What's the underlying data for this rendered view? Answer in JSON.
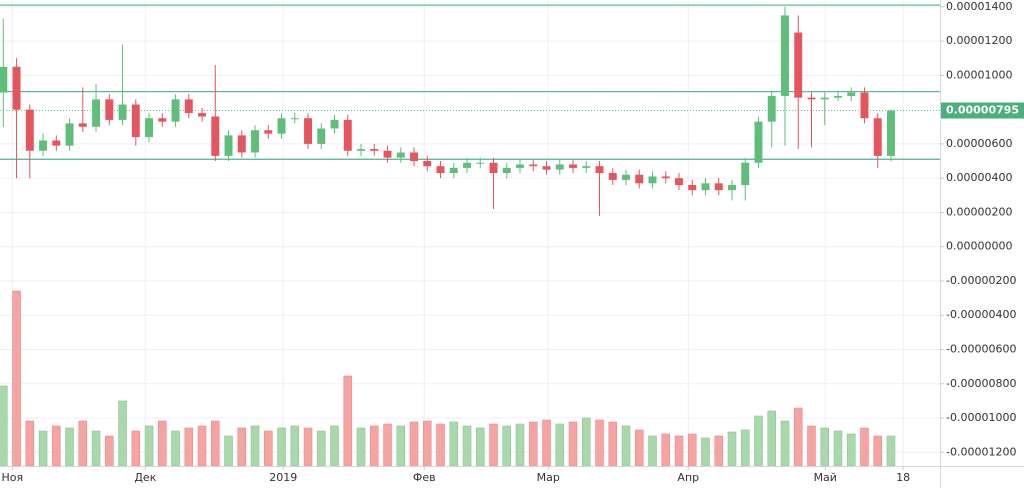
{
  "chart_data": {
    "type": "candlestick",
    "up_color": "#5fbf7a",
    "down_color": "#e4555f",
    "up_volume_color": "#a9d8ad",
    "down_volume_color": "#f5a3a3",
    "level_color": "#5cbd9b",
    "grid": true,
    "xlim": [
      -0.25,
      70.7
    ],
    "xticks": [
      {
        "value": 0.68,
        "label": "Ноя"
      },
      {
        "value": 10.72,
        "label": "Дек"
      },
      {
        "value": 21.13,
        "label": "2019"
      },
      {
        "value": 31.77,
        "label": "Фев"
      },
      {
        "value": 41.13,
        "label": "Мар"
      },
      {
        "value": 51.7,
        "label": "Апр"
      },
      {
        "value": 62.04,
        "label": "Май"
      },
      {
        "value": 67.92,
        "label": "18"
      }
    ],
    "ylim": [
      -1.28e-05,
      1.44e-05
    ],
    "yticks": [
      {
        "value": 1.4e-05,
        "label": "0.00001400"
      },
      {
        "value": 1.2e-05,
        "label": "0.00001200"
      },
      {
        "value": 1e-05,
        "label": "0.00001000"
      },
      {
        "value": 6e-06,
        "label": "0.00000600"
      },
      {
        "value": 4e-06,
        "label": "0.00000400"
      },
      {
        "value": 2e-06,
        "label": "0.00000200"
      },
      {
        "value": 0,
        "label": "0.00000000"
      },
      {
        "value": -2e-06,
        "label": "-0.00000200"
      },
      {
        "value": -4e-06,
        "label": "-0.00000400"
      },
      {
        "value": -6e-06,
        "label": "-0.00000600"
      },
      {
        "value": -8e-06,
        "label": "-0.00000800"
      },
      {
        "value": -1e-05,
        "label": "-0.00001000"
      },
      {
        "value": -1.2e-05,
        "label": "-0.00001200"
      }
    ],
    "last": {
      "value": 7.95e-06,
      "label": "0.00000795"
    },
    "levels": [
      1.41e-05,
      9.05e-06,
      5.1e-06
    ],
    "vlim": [
      0,
      200
    ],
    "open": [
      9e-06,
      1.05e-05,
      8e-06,
      5.6e-06,
      6.2e-06,
      5.9e-06,
      7.2e-06,
      7e-06,
      8.6e-06,
      7.4e-06,
      8.3e-06,
      6.4e-06,
      7.5e-06,
      7.3e-06,
      8.6e-06,
      7.8e-06,
      7.6e-06,
      5.3e-06,
      6.5e-06,
      5.5e-06,
      6.8e-06,
      6.6e-06,
      7.5e-06,
      7.5e-06,
      6e-06,
      6.9e-06,
      7.4e-06,
      5.6e-06,
      5.7e-06,
      5.6e-06,
      5.2e-06,
      5.5e-06,
      5e-06,
      4.7e-06,
      4.3e-06,
      4.6e-06,
      4.9e-06,
      4.9e-06,
      4.3e-06,
      4.6e-06,
      4.8e-06,
      4.7e-06,
      4.5e-06,
      4.8e-06,
      4.6e-06,
      4.7e-06,
      4.3e-06,
      3.9e-06,
      4.2e-06,
      3.7e-06,
      4.1e-06,
      4e-06,
      3.6e-06,
      3.3e-06,
      3.7e-06,
      3.3e-06,
      3.6e-06,
      4.9e-06,
      7.3e-06,
      8.8e-06,
      1.25e-05,
      8.7e-06,
      8.6e-06,
      8.7e-06,
      8.8e-06,
      9e-06,
      7.5e-06,
      5.3e-06
    ],
    "high": [
      1.33e-05,
      1.1e-05,
      8.3e-06,
      6.6e-06,
      6.5e-06,
      7.5e-06,
      9.3e-06,
      9.5e-06,
      8.9e-06,
      1.18e-05,
      8.6e-06,
      7.8e-06,
      7.8e-06,
      8.9e-06,
      8.9e-06,
      8.1e-06,
      1.06e-05,
      6.8e-06,
      6.8e-06,
      7.1e-06,
      7.1e-06,
      7.8e-06,
      7.8e-06,
      7.8e-06,
      7.2e-06,
      7.7e-06,
      7.7e-06,
      6e-06,
      6e-06,
      5.9e-06,
      5.8e-06,
      5.8e-06,
      5.3e-06,
      5e-06,
      4.9e-06,
      5.2e-06,
      5.2e-06,
      5.2e-06,
      4.9e-06,
      5.1e-06,
      5.1e-06,
      5e-06,
      5.1e-06,
      5.1e-06,
      5e-06,
      5e-06,
      4.6e-06,
      4.5e-06,
      4.5e-06,
      4.4e-06,
      4.4e-06,
      4.3e-06,
      3.9e-06,
      4e-06,
      4e-06,
      3.9e-06,
      5.2e-06,
      7.6e-06,
      9.1e-06,
      1.4e-05,
      1.35e-05,
      9e-06,
      9e-06,
      9.1e-06,
      9.3e-06,
      9.3e-06,
      7.8e-06,
      8e-06
    ],
    "low": [
      7e-06,
      4e-06,
      4e-06,
      5.3e-06,
      5.6e-06,
      5.6e-06,
      6.7e-06,
      6.7e-06,
      7.1e-06,
      7.1e-06,
      5.9e-06,
      6.1e-06,
      7e-06,
      7e-06,
      7.5e-06,
      7.3e-06,
      5e-06,
      5e-06,
      5.2e-06,
      5.2e-06,
      6.3e-06,
      6.3e-06,
      7.2e-06,
      5.7e-06,
      5.7e-06,
      6.6e-06,
      5.3e-06,
      5.3e-06,
      5.3e-06,
      4.9e-06,
      4.9e-06,
      4.7e-06,
      4.4e-06,
      4e-06,
      4e-06,
      4.3e-06,
      4.6e-06,
      2.2e-06,
      4e-06,
      4.3e-06,
      4.4e-06,
      4.2e-06,
      4.2e-06,
      4.3e-06,
      4.3e-06,
      1.8e-06,
      3.6e-06,
      3.6e-06,
      3.4e-06,
      3.4e-06,
      3.7e-06,
      3.3e-06,
      3e-06,
      3e-06,
      3e-06,
      2.7e-06,
      2.7e-06,
      4.6e-06,
      5.8e-06,
      5.9e-06,
      5.7e-06,
      5.8e-06,
      7.1e-06,
      8.5e-06,
      8.5e-06,
      7.2e-06,
      4.6e-06,
      5e-06
    ],
    "close": [
      1.05e-05,
      8e-06,
      5.6e-06,
      6.2e-06,
      5.9e-06,
      7.2e-06,
      7e-06,
      8.6e-06,
      7.4e-06,
      8.3e-06,
      6.4e-06,
      7.5e-06,
      7.3e-06,
      8.6e-06,
      7.8e-06,
      7.6e-06,
      5.3e-06,
      6.5e-06,
      5.5e-06,
      6.8e-06,
      6.6e-06,
      7.5e-06,
      7.5e-06,
      6e-06,
      6.9e-06,
      7.4e-06,
      5.6e-06,
      5.7e-06,
      5.6e-06,
      5.2e-06,
      5.5e-06,
      5e-06,
      4.7e-06,
      4.3e-06,
      4.6e-06,
      4.9e-06,
      4.9e-06,
      4.3e-06,
      4.6e-06,
      4.8e-06,
      4.7e-06,
      4.5e-06,
      4.8e-06,
      4.6e-06,
      4.7e-06,
      4.3e-06,
      3.9e-06,
      4.2e-06,
      3.7e-06,
      4.1e-06,
      4e-06,
      3.6e-06,
      3.3e-06,
      3.7e-06,
      3.3e-06,
      3.6e-06,
      4.9e-06,
      7.3e-06,
      8.8e-06,
      1.35e-05,
      8.7e-06,
      8.6e-06,
      8.7e-06,
      8.8e-06,
      9e-06,
      7.5e-06,
      5.3e-06,
      7.95e-06
    ],
    "volume": [
      80,
      175,
      45,
      35,
      40,
      38,
      45,
      35,
      30,
      65,
      35,
      40,
      45,
      35,
      38,
      40,
      45,
      30,
      38,
      40,
      35,
      38,
      40,
      38,
      35,
      40,
      90,
      38,
      40,
      42,
      40,
      44,
      45,
      42,
      44,
      40,
      38,
      42,
      40,
      42,
      44,
      46,
      42,
      44,
      48,
      46,
      44,
      40,
      36,
      30,
      32,
      30,
      32,
      28,
      30,
      34,
      36,
      50,
      55,
      45,
      58,
      40,
      38,
      35,
      32,
      38,
      30,
      30
    ]
  }
}
